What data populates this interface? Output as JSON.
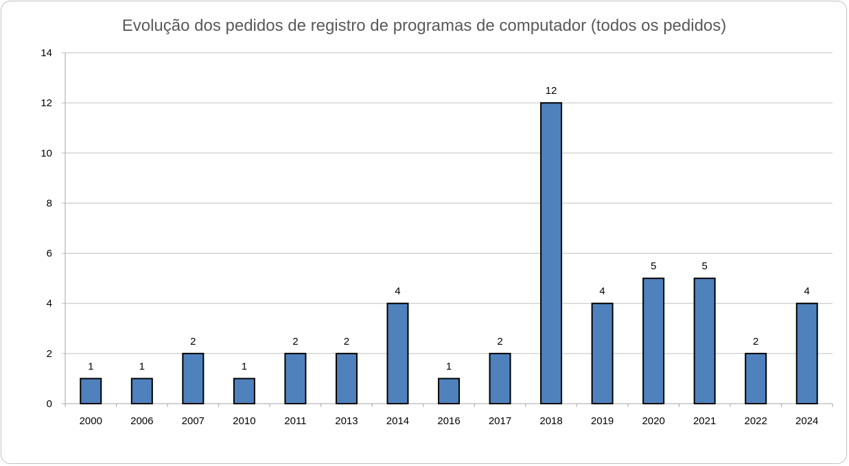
{
  "chart_data": {
    "type": "bar",
    "title": "Evolução dos pedidos de registro de programas de computador (todos os pedidos)",
    "xlabel": "",
    "ylabel": "",
    "categories": [
      "2000",
      "2006",
      "2007",
      "2010",
      "2011",
      "2013",
      "2014",
      "2016",
      "2017",
      "2018",
      "2019",
      "2020",
      "2021",
      "2022",
      "2024"
    ],
    "values": [
      1,
      1,
      2,
      1,
      2,
      2,
      4,
      1,
      2,
      12,
      4,
      5,
      5,
      2,
      4
    ],
    "ylim": [
      0,
      14
    ],
    "yticks": [
      0,
      2,
      4,
      6,
      8,
      10,
      12,
      14
    ],
    "grid": true,
    "legend": "none",
    "data_labels": true,
    "bar_color": "#4F81BD",
    "bar_border": "#000000",
    "title_color": "#595959"
  }
}
